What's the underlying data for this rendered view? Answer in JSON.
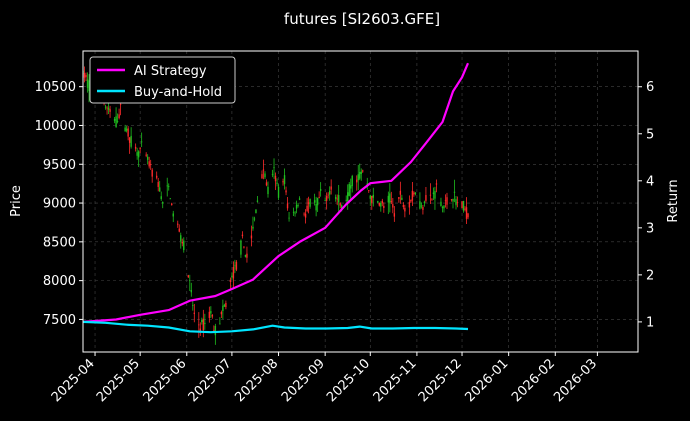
{
  "chart_data": {
    "type": "line",
    "title": "futures [SI2603.GFE]",
    "ylabel_left": "Price",
    "ylabel_right": "Return",
    "xlim": [
      "2025-03-24",
      "2026-03-28"
    ],
    "ylim_left": [
      7080,
      10960
    ],
    "ylim_right": [
      0.36,
      6.76
    ],
    "grid": true,
    "legend_position": "top-left",
    "x_ticks": [
      "2025-04",
      "2025-05",
      "2025-06",
      "2025-07",
      "2025-08",
      "2025-09",
      "2025-10",
      "2025-11",
      "2025-12",
      "2026-01",
      "2026-02",
      "2026-03"
    ],
    "y_ticks_left": [
      "7500",
      "8000",
      "8500",
      "9000",
      "9500",
      "10000",
      "10500"
    ],
    "y_ticks_right": [
      "1",
      "2",
      "3",
      "4",
      "5",
      "6"
    ],
    "colors": {
      "up": "#ff2a2a",
      "down": "#1fbf1f",
      "ai": "#ff00ff",
      "bh": "#00e5ff",
      "grid": "#444444"
    },
    "price_series": {
      "name": "Price (daily candles)",
      "points": [
        [
          "2025-03-24",
          10680
        ],
        [
          "2025-03-28",
          10520
        ],
        [
          "2025-04-01",
          10400
        ],
        [
          "2025-04-04",
          10550
        ],
        [
          "2025-04-08",
          10250
        ],
        [
          "2025-04-11",
          10150
        ],
        [
          "2025-04-15",
          10050
        ],
        [
          "2025-04-18",
          10200
        ],
        [
          "2025-04-22",
          9950
        ],
        [
          "2025-04-25",
          9800
        ],
        [
          "2025-04-29",
          9650
        ],
        [
          "2025-05-02",
          9700
        ],
        [
          "2025-05-06",
          9550
        ],
        [
          "2025-05-09",
          9400
        ],
        [
          "2025-05-13",
          9250
        ],
        [
          "2025-05-16",
          9000
        ],
        [
          "2025-05-20",
          9200
        ],
        [
          "2025-05-23",
          8850
        ],
        [
          "2025-05-27",
          8650
        ],
        [
          "2025-05-30",
          8450
        ],
        [
          "2025-06-03",
          7950
        ],
        [
          "2025-06-06",
          7550
        ],
        [
          "2025-06-10",
          7400
        ],
        [
          "2025-06-13",
          7450
        ],
        [
          "2025-06-17",
          7600
        ],
        [
          "2025-06-20",
          7350
        ],
        [
          "2025-06-24",
          7550
        ],
        [
          "2025-06-27",
          7700
        ],
        [
          "2025-07-01",
          8050
        ],
        [
          "2025-07-04",
          8200
        ],
        [
          "2025-07-08",
          8500
        ],
        [
          "2025-07-11",
          8300
        ],
        [
          "2025-07-15",
          8650
        ],
        [
          "2025-07-18",
          9050
        ],
        [
          "2025-07-22",
          9450
        ],
        [
          "2025-07-25",
          9150
        ],
        [
          "2025-07-29",
          9400
        ],
        [
          "2025-08-01",
          9150
        ],
        [
          "2025-08-05",
          9300
        ],
        [
          "2025-08-08",
          8800
        ],
        [
          "2025-08-12",
          8900
        ],
        [
          "2025-08-15",
          9050
        ],
        [
          "2025-08-19",
          8850
        ],
        [
          "2025-08-22",
          9000
        ],
        [
          "2025-08-26",
          8950
        ],
        [
          "2025-08-29",
          9100
        ],
        [
          "2025-09-02",
          9000
        ],
        [
          "2025-09-05",
          9250
        ],
        [
          "2025-09-09",
          9050
        ],
        [
          "2025-09-12",
          8950
        ],
        [
          "2025-09-16",
          9100
        ],
        [
          "2025-09-19",
          9300
        ],
        [
          "2025-09-23",
          9350
        ],
        [
          "2025-09-26",
          9400
        ],
        [
          "2025-10-02",
          9050
        ],
        [
          "2025-10-07",
          9000
        ],
        [
          "2025-10-10",
          8950
        ],
        [
          "2025-10-14",
          9050
        ],
        [
          "2025-10-17",
          8900
        ],
        [
          "2025-10-21",
          9100
        ],
        [
          "2025-10-24",
          8950
        ],
        [
          "2025-10-28",
          9050
        ],
        [
          "2025-10-31",
          9150
        ],
        [
          "2025-11-04",
          8950
        ],
        [
          "2025-11-07",
          9100
        ],
        [
          "2025-11-11",
          9050
        ],
        [
          "2025-11-14",
          9200
        ],
        [
          "2025-11-18",
          8950
        ],
        [
          "2025-11-21",
          9000
        ],
        [
          "2025-11-25",
          9100
        ],
        [
          "2025-11-28",
          9000
        ],
        [
          "2025-12-02",
          8950
        ],
        [
          "2025-12-05",
          8850
        ]
      ]
    },
    "series": [
      {
        "name": "AI Strategy",
        "points": [
          [
            "2025-03-24",
            1.0
          ],
          [
            "2025-04-15",
            1.05
          ],
          [
            "2025-05-01",
            1.15
          ],
          [
            "2025-05-20",
            1.25
          ],
          [
            "2025-06-03",
            1.45
          ],
          [
            "2025-06-20",
            1.55
          ],
          [
            "2025-07-01",
            1.7
          ],
          [
            "2025-07-15",
            1.9
          ],
          [
            "2025-08-01",
            2.4
          ],
          [
            "2025-08-15",
            2.7
          ],
          [
            "2025-09-01",
            3.0
          ],
          [
            "2025-09-15",
            3.5
          ],
          [
            "2025-09-25",
            3.8
          ],
          [
            "2025-10-01",
            3.95
          ],
          [
            "2025-10-15",
            4.0
          ],
          [
            "2025-10-28",
            4.4
          ],
          [
            "2025-11-07",
            4.8
          ],
          [
            "2025-11-18",
            5.25
          ],
          [
            "2025-11-25",
            5.9
          ],
          [
            "2025-12-01",
            6.2
          ],
          [
            "2025-12-05",
            6.5
          ]
        ]
      },
      {
        "name": "Buy-and-Hold",
        "points": [
          [
            "2025-03-24",
            1.0
          ],
          [
            "2025-04-08",
            0.98
          ],
          [
            "2025-04-22",
            0.94
          ],
          [
            "2025-05-06",
            0.92
          ],
          [
            "2025-05-20",
            0.88
          ],
          [
            "2025-06-03",
            0.8
          ],
          [
            "2025-06-17",
            0.78
          ],
          [
            "2025-07-01",
            0.8
          ],
          [
            "2025-07-15",
            0.84
          ],
          [
            "2025-07-28",
            0.92
          ],
          [
            "2025-08-05",
            0.88
          ],
          [
            "2025-08-19",
            0.86
          ],
          [
            "2025-09-02",
            0.86
          ],
          [
            "2025-09-16",
            0.87
          ],
          [
            "2025-09-24",
            0.9
          ],
          [
            "2025-10-02",
            0.86
          ],
          [
            "2025-10-16",
            0.86
          ],
          [
            "2025-10-30",
            0.87
          ],
          [
            "2025-11-13",
            0.87
          ],
          [
            "2025-11-27",
            0.86
          ],
          [
            "2025-12-05",
            0.85
          ]
        ]
      }
    ]
  }
}
